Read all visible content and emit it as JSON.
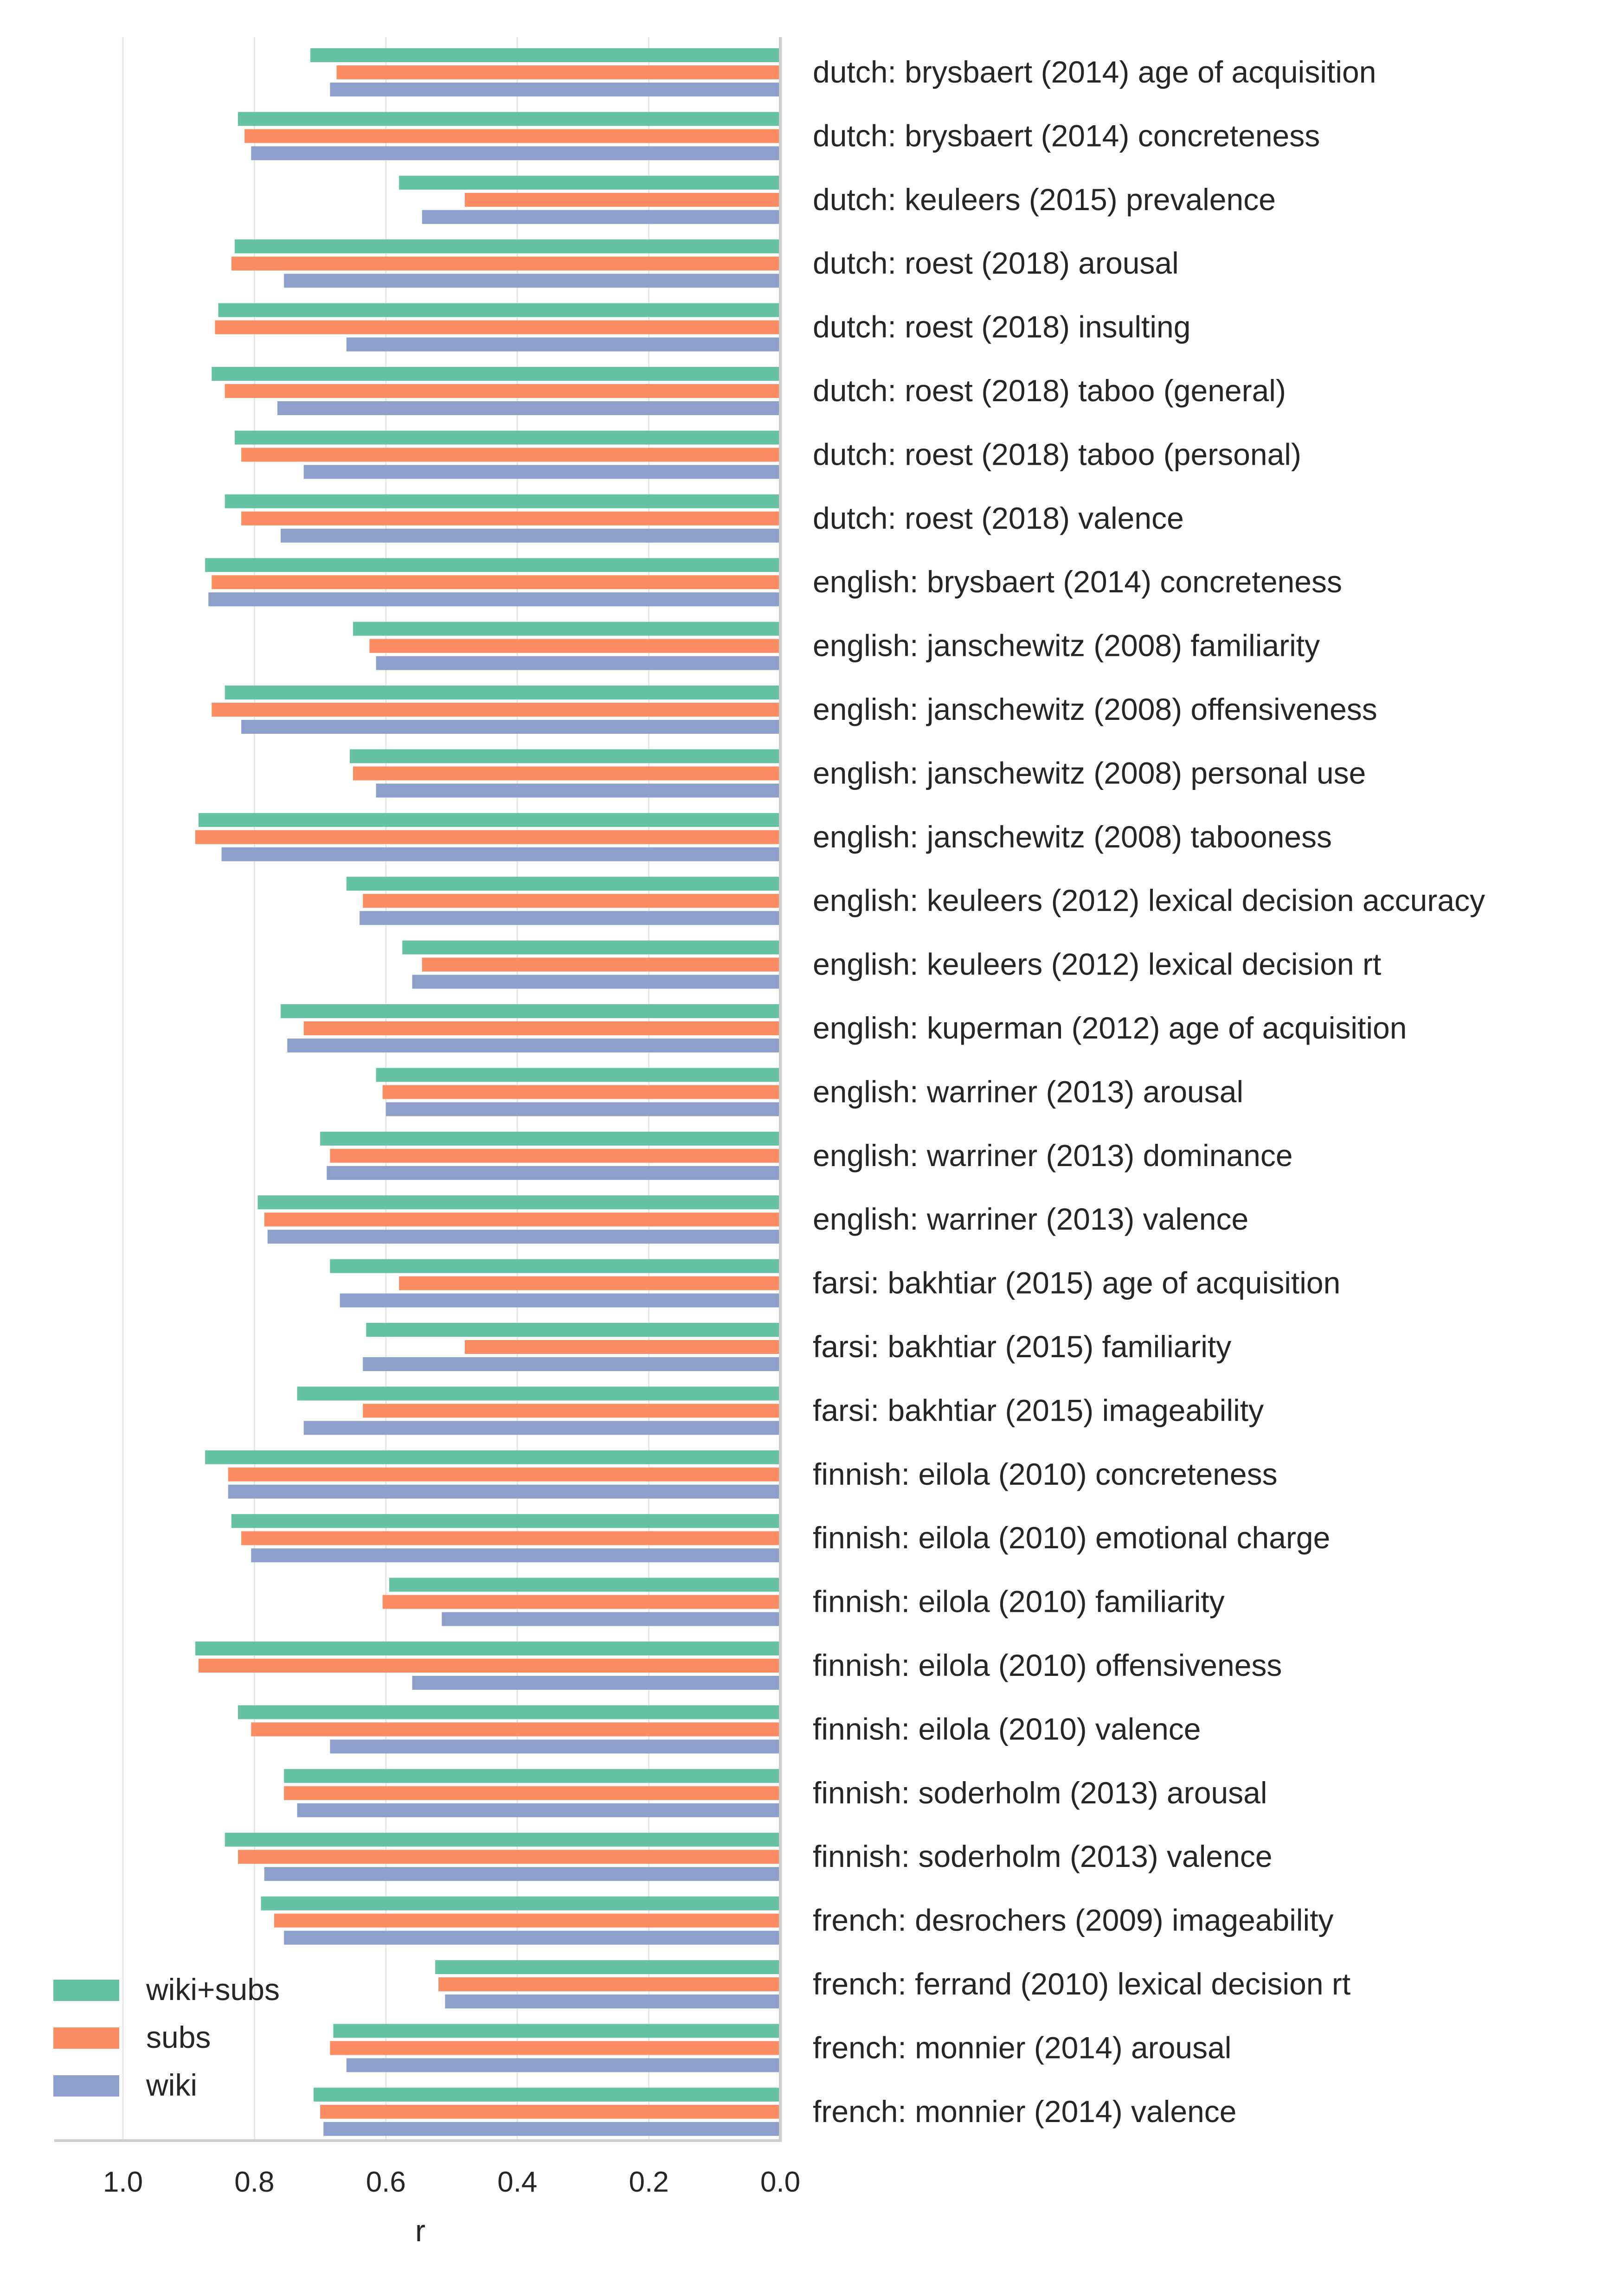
{
  "chart_data": {
    "type": "bar",
    "orientation": "horizontal",
    "x_axis_inverted": true,
    "xlabel": "r",
    "ylabel": "",
    "xlim": [
      1.1,
      0.0
    ],
    "x_ticks": [
      1.0,
      0.8,
      0.6,
      0.4,
      0.2,
      0.0
    ],
    "x_tick_labels": [
      "1.0",
      "0.8",
      "0.6",
      "0.4",
      "0.2",
      "0.0"
    ],
    "grid": "vertical",
    "legend_position": "bottom-left",
    "categories": [
      "dutch: brysbaert (2014) age of acquisition",
      "dutch: brysbaert (2014) concreteness",
      "dutch: keuleers (2015) prevalence",
      "dutch: roest (2018) arousal",
      "dutch: roest (2018) insulting",
      "dutch: roest (2018) taboo (general)",
      "dutch: roest (2018) taboo (personal)",
      "dutch: roest (2018) valence",
      "english: brysbaert (2014) concreteness",
      "english: janschewitz (2008) familiarity",
      "english: janschewitz (2008) offensiveness",
      "english: janschewitz (2008) personal use",
      "english: janschewitz (2008) tabooness",
      "english: keuleers (2012) lexical decision accuracy",
      "english: keuleers (2012) lexical decision rt",
      "english: kuperman (2012) age of acquisition",
      "english: warriner (2013) arousal",
      "english: warriner (2013) dominance",
      "english: warriner (2013) valence",
      "farsi: bakhtiar (2015) age of acquisition",
      "farsi: bakhtiar (2015) familiarity",
      "farsi: bakhtiar (2015) imageability",
      "finnish: eilola (2010) concreteness",
      "finnish: eilola (2010) emotional charge",
      "finnish: eilola (2010) familiarity",
      "finnish: eilola (2010) offensiveness",
      "finnish: eilola (2010) valence",
      "finnish: soderholm (2013) arousal",
      "finnish: soderholm (2013) valence",
      "french: desrochers (2009) imageability",
      "french: ferrand (2010) lexical decision rt",
      "french: monnier (2014) arousal",
      "french: monnier (2014) valence"
    ],
    "series": [
      {
        "name": "wiki+subs",
        "color": "#66c2a5",
        "values": [
          0.715,
          0.825,
          0.58,
          0.83,
          0.855,
          0.865,
          0.83,
          0.845,
          0.875,
          0.65,
          0.845,
          0.655,
          0.885,
          0.66,
          0.575,
          0.76,
          0.615,
          0.7,
          0.795,
          0.685,
          0.63,
          0.735,
          0.875,
          0.835,
          0.595,
          0.89,
          0.825,
          0.755,
          0.845,
          0.79,
          0.525,
          0.68,
          0.71
        ]
      },
      {
        "name": "subs",
        "color": "#fc8d62",
        "values": [
          0.675,
          0.815,
          0.48,
          0.835,
          0.86,
          0.845,
          0.82,
          0.82,
          0.865,
          0.625,
          0.865,
          0.65,
          0.89,
          0.635,
          0.545,
          0.725,
          0.605,
          0.685,
          0.785,
          0.58,
          0.48,
          0.635,
          0.84,
          0.82,
          0.605,
          0.885,
          0.805,
          0.755,
          0.825,
          0.77,
          0.52,
          0.685,
          0.7
        ]
      },
      {
        "name": "wiki",
        "color": "#8da0cb",
        "values": [
          0.685,
          0.805,
          0.545,
          0.755,
          0.66,
          0.765,
          0.725,
          0.76,
          0.87,
          0.615,
          0.82,
          0.615,
          0.85,
          0.64,
          0.56,
          0.75,
          0.6,
          0.69,
          0.78,
          0.67,
          0.635,
          0.725,
          0.84,
          0.805,
          0.515,
          0.56,
          0.685,
          0.735,
          0.785,
          0.755,
          0.51,
          0.66,
          0.695
        ]
      }
    ]
  }
}
